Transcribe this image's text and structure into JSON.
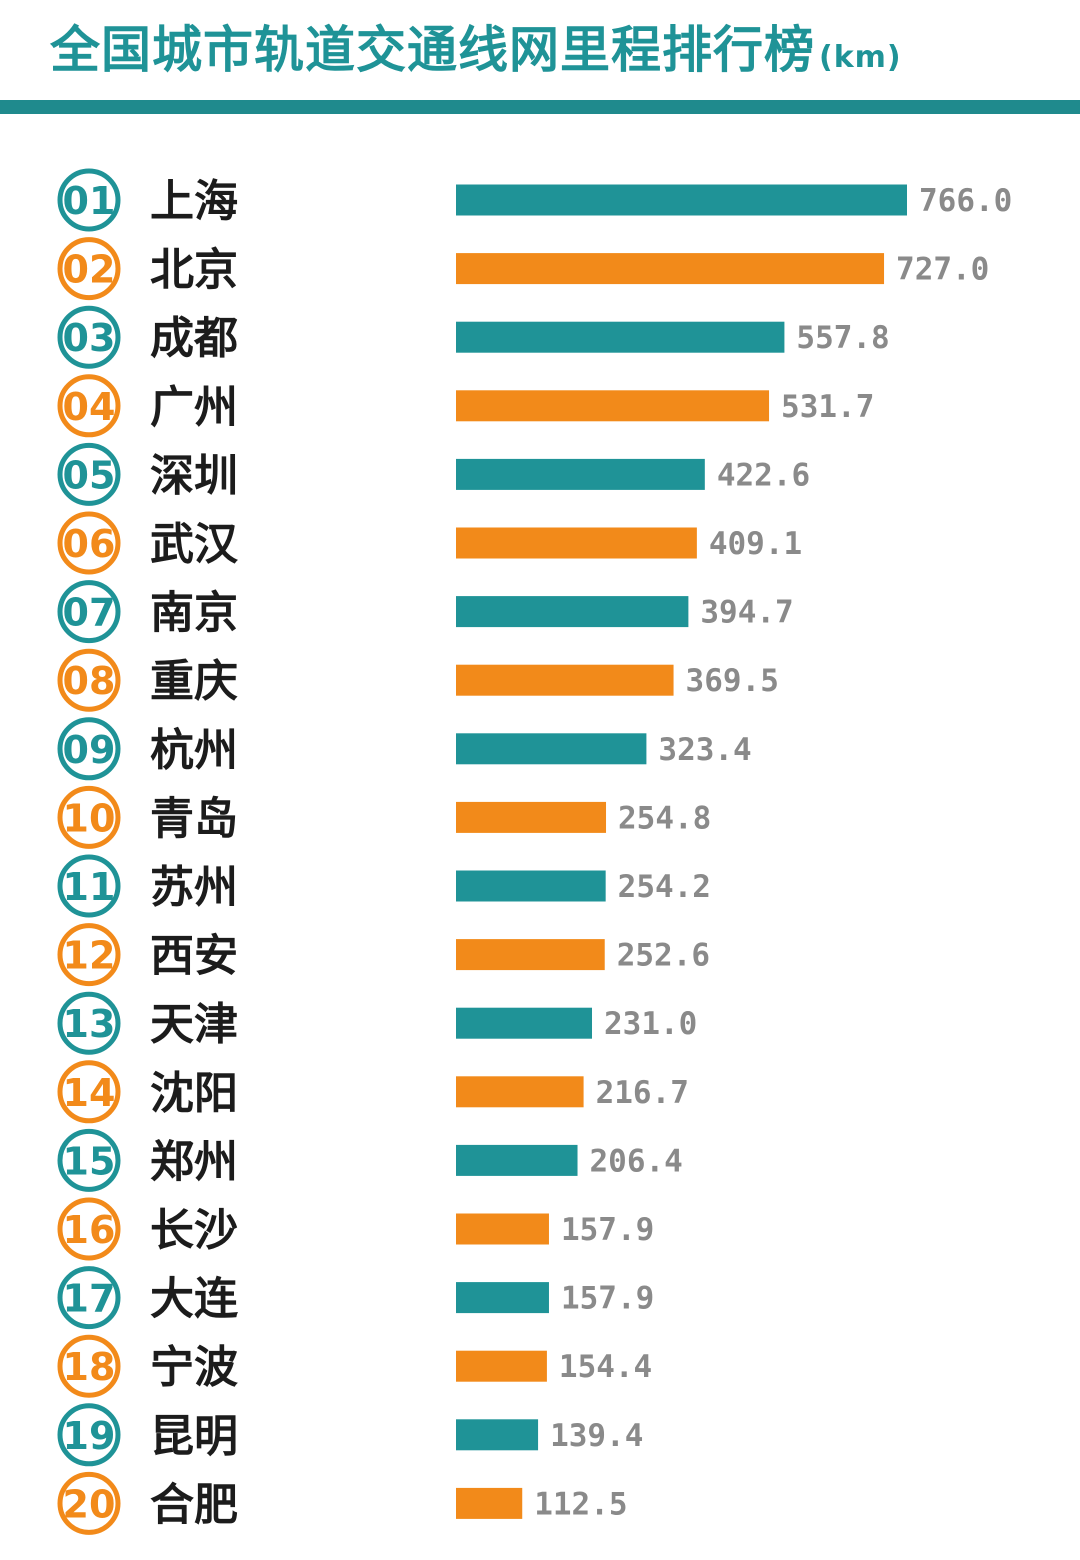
{
  "title": "全国城市轨道交通线网里程排行榜",
  "unit": "(km)",
  "colors": {
    "teal": "#1f9397",
    "orange": "#f28a1a",
    "value_text": "#8a8a8a",
    "rule": "#1f8a8d"
  },
  "chart_data": {
    "type": "bar",
    "orientation": "horizontal",
    "categories": [
      "上海",
      "北京",
      "成都",
      "广州",
      "深圳",
      "武汉",
      "南京",
      "重庆",
      "杭州",
      "青岛",
      "苏州",
      "西安",
      "天津",
      "沈阳",
      "郑州",
      "长沙",
      "大连",
      "宁波",
      "昆明",
      "合肥"
    ],
    "ranks": [
      "01",
      "02",
      "03",
      "04",
      "05",
      "06",
      "07",
      "08",
      "09",
      "10",
      "11",
      "12",
      "13",
      "14",
      "15",
      "16",
      "17",
      "18",
      "19",
      "20"
    ],
    "values": [
      766.0,
      727.0,
      557.8,
      531.7,
      422.6,
      409.1,
      394.7,
      369.5,
      323.4,
      254.8,
      254.2,
      252.6,
      231.0,
      216.7,
      206.4,
      157.9,
      157.9,
      154.4,
      139.4,
      112.5
    ],
    "value_labels": [
      "766.0",
      "727.0",
      "557.8",
      "531.7",
      "422.6",
      "409.1",
      "394.7",
      "369.5",
      "323.4",
      "254.8",
      "254.2",
      "252.6",
      "231.0",
      "216.7",
      "206.4",
      "157.9",
      "157.9",
      "154.4",
      "139.4",
      "112.5"
    ],
    "title": "全国城市轨道交通线网里程排行榜",
    "xlim": [
      0,
      766.0
    ],
    "color_pattern": [
      "teal",
      "orange"
    ],
    "grid": false,
    "legend": "none"
  }
}
